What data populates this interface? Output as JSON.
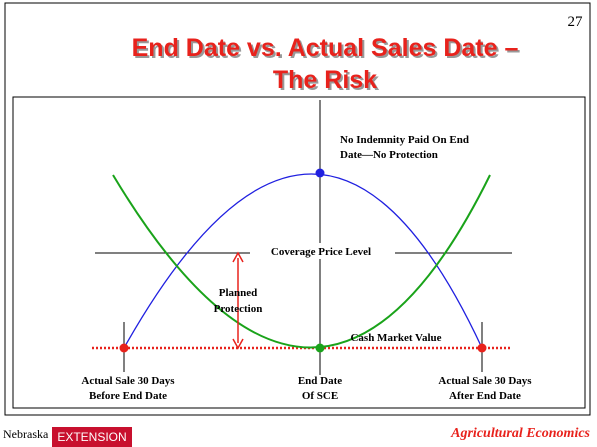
{
  "slide_number": "27",
  "title": [
    "End Date vs. Actual Sales Date –",
    "The Risk"
  ],
  "annotations": {
    "no_indemnity": [
      "No Indemnity Paid On End",
      "Date—No Protection"
    ],
    "coverage": "Coverage Price Level",
    "planned": [
      "Planned",
      "Protection"
    ],
    "cash": "Cash Market Value"
  },
  "bottom_labels": [
    [
      "Actual Sale 30 Days",
      "Before End Date"
    ],
    [
      "End Date",
      "Of SCE"
    ],
    [
      "Actual Sale 30 Days",
      "After End Date"
    ]
  ],
  "footer": {
    "logo_name": "Nebraska",
    "logo_unit": "EXTENSION",
    "department": "Agricultural Economics"
  }
}
